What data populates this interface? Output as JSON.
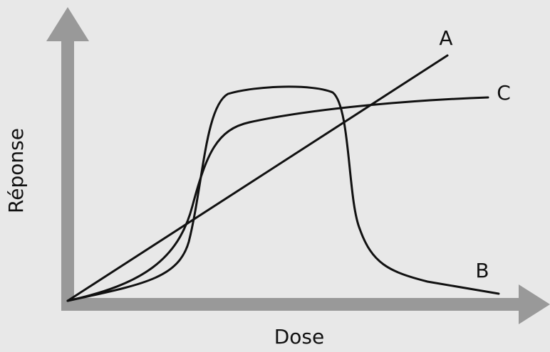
{
  "axes": {
    "y_label": "Réponse",
    "x_label": "Dose"
  },
  "curves": [
    {
      "label": "A"
    },
    {
      "label": "B"
    },
    {
      "label": "C"
    }
  ]
}
